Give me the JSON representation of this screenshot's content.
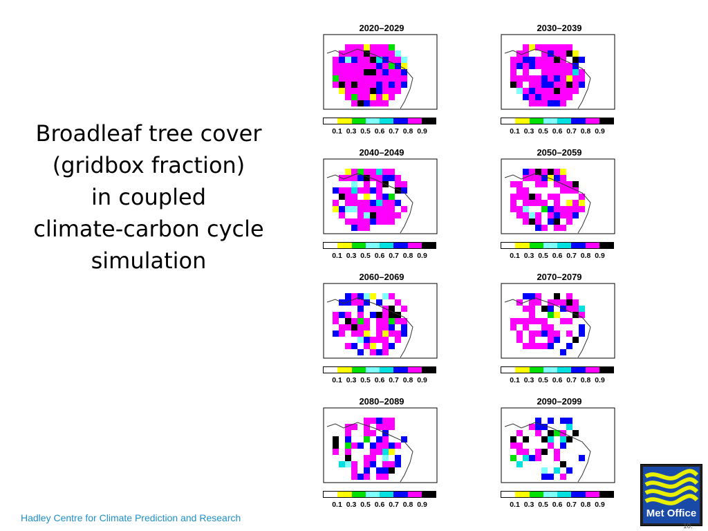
{
  "title_lines": [
    "Broadleaf tree cover",
    "(gridbox fraction)",
    "in coupled",
    "climate-carbon cycle",
    "simulation"
  ],
  "footer": "Hadley Centre for Climate Prediction and Research",
  "logo_text": "Met Office",
  "page_number": "10.",
  "colorbar": {
    "colors": [
      "#ffffff",
      "#ffff00",
      "#00e000",
      "#80ffff",
      "#00e0e0",
      "#0000ff",
      "#ff00ff",
      "#000000"
    ],
    "tick_labels": [
      "0.1",
      "0.3",
      "0.5",
      "0.6",
      "0.7",
      "0.8",
      "0.9"
    ]
  },
  "panels": [
    {
      "title": "2020–2029"
    },
    {
      "title": "2030–2039"
    },
    {
      "title": "2040–2049"
    },
    {
      "title": "2050–2059"
    },
    {
      "title": "2060–2069"
    },
    {
      "title": "2070–2079"
    },
    {
      "title": "2080–2089"
    },
    {
      "title": "2090–2099"
    }
  ]
}
